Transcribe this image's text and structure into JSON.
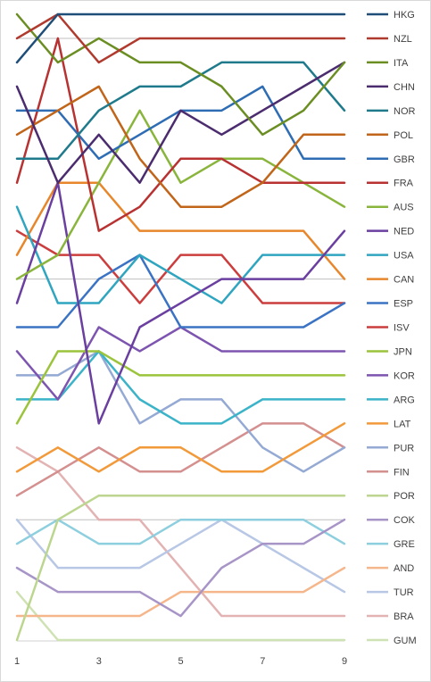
{
  "chart_data": {
    "type": "line",
    "title": "",
    "xlabel": "",
    "ylabel": "",
    "x": [
      1,
      2,
      3,
      4,
      5,
      6,
      7,
      8,
      9
    ],
    "x_tick_labels": [
      "1",
      "3",
      "5",
      "7",
      "9"
    ],
    "x_tick_values": [
      1,
      3,
      5,
      7,
      9
    ],
    "y_axis": "rank, 1 at top",
    "ylim": [
      1,
      27
    ],
    "gridlines": [
      2,
      12,
      22
    ],
    "legend_position": "right",
    "series": [
      {
        "name": "HKG",
        "color": "#1f4e79",
        "values": [
          3,
          1,
          1,
          1,
          1,
          1,
          1,
          1,
          1
        ]
      },
      {
        "name": "NZL",
        "color": "#b03a2e",
        "values": [
          2,
          1,
          3,
          2,
          2,
          2,
          2,
          2,
          2
        ]
      },
      {
        "name": "ITA",
        "color": "#6b8e23",
        "values": [
          1,
          3,
          2,
          3,
          3,
          4,
          6,
          5,
          3
        ]
      },
      {
        "name": "CHN",
        "color": "#4b2c6f",
        "values": [
          4,
          8,
          6,
          8,
          5,
          6,
          5,
          4,
          3
        ]
      },
      {
        "name": "NOR",
        "color": "#1f7a8c",
        "values": [
          7,
          7,
          5,
          4,
          4,
          3,
          3,
          3,
          5
        ]
      },
      {
        "name": "POL",
        "color": "#c0651a",
        "values": [
          6,
          5,
          4,
          7,
          9,
          9,
          8,
          6,
          6
        ]
      },
      {
        "name": "GBR",
        "color": "#2e6db4",
        "values": [
          5,
          5,
          7,
          6,
          5,
          5,
          4,
          7,
          7
        ]
      },
      {
        "name": "FRA",
        "color": "#b83232",
        "values": [
          8,
          2,
          10,
          9,
          7,
          7,
          8,
          8,
          8
        ]
      },
      {
        "name": "AUS",
        "color": "#8ab53c",
        "values": [
          12,
          11,
          8,
          5,
          8,
          7,
          7,
          8,
          9
        ]
      },
      {
        "name": "NED",
        "color": "#6a3fa0",
        "values": [
          13,
          8,
          18,
          14,
          13,
          12,
          12,
          12,
          10
        ]
      },
      {
        "name": "USA",
        "color": "#2fa5c0",
        "values": [
          9,
          13,
          13,
          11,
          12,
          13,
          11,
          11,
          11
        ]
      },
      {
        "name": "CAN",
        "color": "#e8862b",
        "values": [
          11,
          8,
          8,
          10,
          10,
          10,
          10,
          10,
          12
        ]
      },
      {
        "name": "ESP",
        "color": "#3b73c4",
        "values": [
          14,
          14,
          12,
          11,
          14,
          14,
          14,
          14,
          13
        ]
      },
      {
        "name": "ISV",
        "color": "#cc3d3d",
        "values": [
          10,
          11,
          11,
          13,
          11,
          11,
          13,
          13,
          13
        ]
      },
      {
        "name": "JPN",
        "color": "#9bc43c",
        "values": [
          18,
          15,
          15,
          16,
          16,
          16,
          16,
          16,
          16
        ]
      },
      {
        "name": "KOR",
        "color": "#7d55b0",
        "values": [
          15,
          17,
          14,
          15,
          14,
          15,
          15,
          15,
          15
        ]
      },
      {
        "name": "ARG",
        "color": "#3bb3c8",
        "values": [
          17,
          17,
          15,
          17,
          18,
          18,
          17,
          17,
          17
        ]
      },
      {
        "name": "LAT",
        "color": "#f29a3a",
        "values": [
          20,
          19,
          20,
          19,
          19,
          20,
          20,
          19,
          18
        ]
      },
      {
        "name": "PUR",
        "color": "#94a9d3",
        "values": [
          16,
          16,
          15,
          18,
          17,
          17,
          19,
          20,
          19
        ]
      },
      {
        "name": "FIN",
        "color": "#d48f8f",
        "values": [
          21,
          20,
          19,
          20,
          20,
          19,
          18,
          18,
          19
        ]
      },
      {
        "name": "POR",
        "color": "#bcd68f",
        "values": [
          27,
          22,
          21,
          21,
          21,
          21,
          21,
          21,
          21
        ]
      },
      {
        "name": "COK",
        "color": "#a895c8",
        "values": [
          24,
          25,
          25,
          25,
          26,
          24,
          23,
          23,
          22
        ]
      },
      {
        "name": "GRE",
        "color": "#8ecfdf",
        "values": [
          23,
          22,
          23,
          23,
          22,
          22,
          22,
          22,
          23
        ]
      },
      {
        "name": "AND",
        "color": "#f6b68b",
        "values": [
          26,
          26,
          26,
          26,
          25,
          25,
          25,
          25,
          24
        ]
      },
      {
        "name": "TUR",
        "color": "#b7c7e5",
        "values": [
          22,
          24,
          24,
          24,
          23,
          22,
          23,
          24,
          25
        ]
      },
      {
        "name": "BRA",
        "color": "#e3b3b3",
        "values": [
          19,
          20,
          22,
          22,
          24,
          26,
          26,
          26,
          26
        ]
      },
      {
        "name": "GUM",
        "color": "#cfe2b3",
        "values": [
          25,
          27,
          27,
          27,
          27,
          27,
          27,
          27,
          27
        ]
      }
    ]
  }
}
